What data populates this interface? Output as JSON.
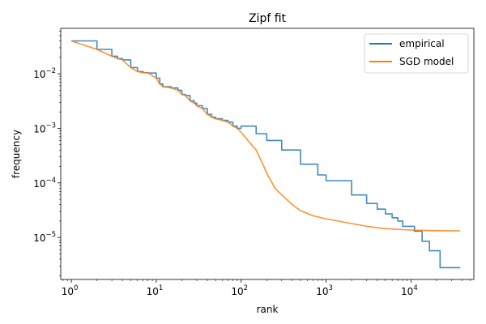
{
  "chart_data": {
    "type": "line",
    "title": "Zipf fit",
    "xlabel": "rank",
    "ylabel": "frequency",
    "xscale": "log",
    "yscale": "log",
    "xlim": [
      0.75,
      55000
    ],
    "ylim": [
      1.7e-06,
      0.068
    ],
    "xticks": [
      {
        "base": "10",
        "exp": "0",
        "value": 1
      },
      {
        "base": "10",
        "exp": "1",
        "value": 10
      },
      {
        "base": "10",
        "exp": "2",
        "value": 100
      },
      {
        "base": "10",
        "exp": "3",
        "value": 1000
      },
      {
        "base": "10",
        "exp": "4",
        "value": 10000
      }
    ],
    "yticks": [
      {
        "base": "10",
        "exp": "−5",
        "value": 1e-05
      },
      {
        "base": "10",
        "exp": "−4",
        "value": 0.0001
      },
      {
        "base": "10",
        "exp": "−3",
        "value": 0.001
      },
      {
        "base": "10",
        "exp": "−2",
        "value": 0.01
      }
    ],
    "grid": false,
    "legend": {
      "position": "top-right"
    },
    "series": [
      {
        "name": "empirical",
        "color": "#1f77b4",
        "step": true,
        "x": [
          1,
          2,
          3,
          3.5,
          4,
          5,
          6,
          7,
          8,
          10,
          11,
          12,
          15,
          18,
          20,
          22,
          25,
          28,
          30,
          35,
          40,
          45,
          50,
          60,
          70,
          80,
          90,
          100,
          150,
          200,
          300,
          500,
          800,
          1000,
          2000,
          3000,
          4000,
          5000,
          6000,
          7000,
          8000,
          11000,
          13500,
          16500,
          22000,
          38000
        ],
        "y": [
          0.04,
          0.028,
          0.021,
          0.019,
          0.018,
          0.013,
          0.011,
          0.0105,
          0.0103,
          0.0083,
          0.0065,
          0.0058,
          0.0055,
          0.005,
          0.0042,
          0.004,
          0.0032,
          0.0029,
          0.0026,
          0.0023,
          0.0018,
          0.0016,
          0.0015,
          0.0014,
          0.0013,
          0.0011,
          0.001,
          0.0011,
          0.0008,
          0.0006,
          0.0004,
          0.00022,
          0.00014,
          0.00011,
          6e-05,
          4.2e-05,
          3.3e-05,
          2.7e-05,
          2.3e-05,
          2e-05,
          1.6e-05,
          1.3e-05,
          8.5e-06,
          5.7e-06,
          2.8e-06,
          2.8e-06
        ]
      },
      {
        "name": "SGD model",
        "color": "#ff7f0e",
        "step": false,
        "x": [
          1,
          2,
          3,
          3.5,
          4,
          5,
          6,
          7,
          8,
          10,
          11,
          12,
          15,
          18,
          20,
          22,
          25,
          28,
          30,
          35,
          40,
          45,
          50,
          60,
          70,
          80,
          90,
          100,
          120,
          150,
          180,
          200,
          250,
          300,
          400,
          500,
          700,
          1000,
          2000,
          3000,
          5000,
          10000,
          20000,
          38000
        ],
        "y": [
          0.04,
          0.028,
          0.021,
          0.019,
          0.018,
          0.013,
          0.011,
          0.0105,
          0.0103,
          0.0083,
          0.0065,
          0.0058,
          0.0055,
          0.005,
          0.0042,
          0.004,
          0.0032,
          0.0029,
          0.0026,
          0.0023,
          0.0018,
          0.0016,
          0.0015,
          0.0014,
          0.0013,
          0.0011,
          0.001,
          0.00085,
          0.0006,
          0.0004,
          0.00022,
          0.00015,
          8e-05,
          6e-05,
          4e-05,
          3.1e-05,
          2.5e-05,
          2.2e-05,
          1.8e-05,
          1.6e-05,
          1.45e-05,
          1.37e-05,
          1.33e-05,
          1.32e-05
        ]
      }
    ]
  }
}
